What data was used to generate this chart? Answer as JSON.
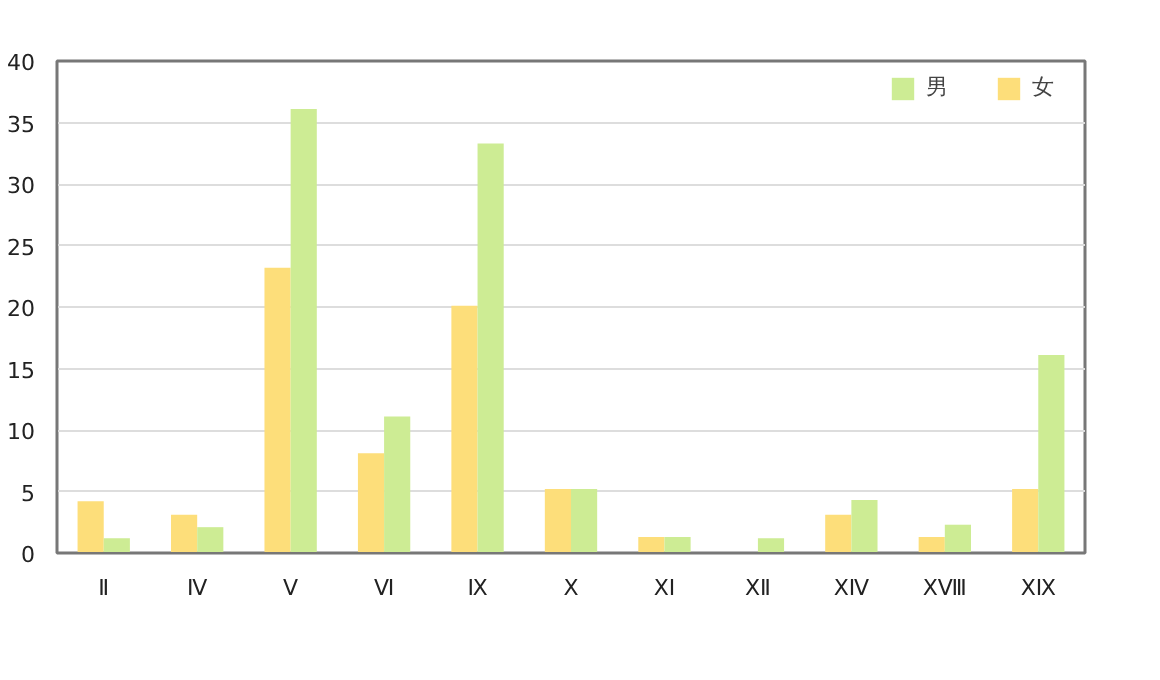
{
  "chart_data": {
    "type": "bar",
    "categories": [
      "Ⅱ",
      "Ⅳ",
      "Ⅴ",
      "Ⅵ",
      "Ⅸ",
      "Ⅹ",
      "ⅩⅠ",
      "ⅩⅡ",
      "ⅩⅣ",
      "ⅩⅧ",
      "ⅩⅨ"
    ],
    "series": [
      {
        "name": "女",
        "color": "#fdde7a",
        "values": [
          4.2,
          3.1,
          23.2,
          8.1,
          20.1,
          5.2,
          1.3,
          0,
          3.1,
          1.3,
          5.2
        ]
      },
      {
        "name": "男",
        "color": "#cdec94",
        "values": [
          1.2,
          2.1,
          36.1,
          11.1,
          33.3,
          5.2,
          1.3,
          1.2,
          4.3,
          2.3,
          16.1
        ]
      }
    ],
    "ylim": [
      0,
      40
    ],
    "yticks": [
      0,
      5,
      10,
      15,
      20,
      25,
      30,
      35,
      40
    ],
    "grid": "y",
    "legend": "top right"
  }
}
